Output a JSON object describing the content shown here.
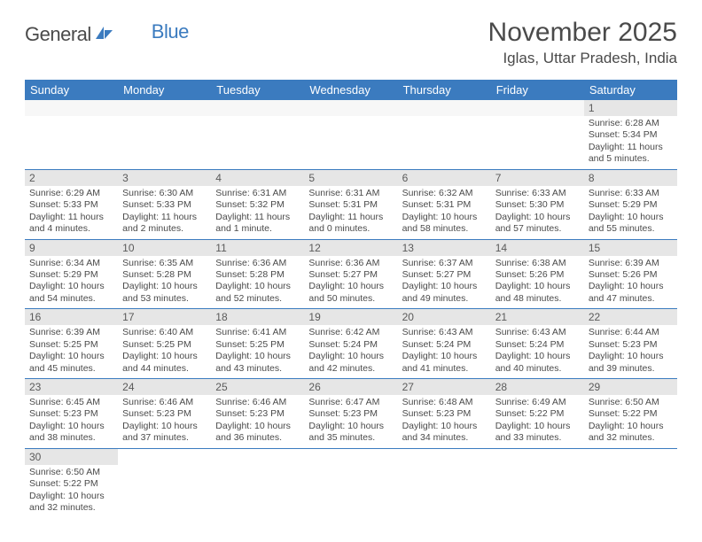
{
  "logo": {
    "part1": "General",
    "part2": "Blue"
  },
  "title": "November 2025",
  "subtitle": "Iglas, Uttar Pradesh, India",
  "colors": {
    "header_bg": "#3b7bbf",
    "header_text": "#ffffff",
    "daynum_bg": "#e6e6e6",
    "text": "#4a4a4a",
    "border": "#3b7bbf",
    "logo_blue": "#3b7bbf"
  },
  "daysOfWeek": [
    "Sunday",
    "Monday",
    "Tuesday",
    "Wednesday",
    "Thursday",
    "Friday",
    "Saturday"
  ],
  "weeks": [
    [
      null,
      null,
      null,
      null,
      null,
      null,
      {
        "n": "1",
        "sr": "Sunrise: 6:28 AM",
        "ss": "Sunset: 5:34 PM",
        "dl": "Daylight: 11 hours and 5 minutes."
      }
    ],
    [
      {
        "n": "2",
        "sr": "Sunrise: 6:29 AM",
        "ss": "Sunset: 5:33 PM",
        "dl": "Daylight: 11 hours and 4 minutes."
      },
      {
        "n": "3",
        "sr": "Sunrise: 6:30 AM",
        "ss": "Sunset: 5:33 PM",
        "dl": "Daylight: 11 hours and 2 minutes."
      },
      {
        "n": "4",
        "sr": "Sunrise: 6:31 AM",
        "ss": "Sunset: 5:32 PM",
        "dl": "Daylight: 11 hours and 1 minute."
      },
      {
        "n": "5",
        "sr": "Sunrise: 6:31 AM",
        "ss": "Sunset: 5:31 PM",
        "dl": "Daylight: 11 hours and 0 minutes."
      },
      {
        "n": "6",
        "sr": "Sunrise: 6:32 AM",
        "ss": "Sunset: 5:31 PM",
        "dl": "Daylight: 10 hours and 58 minutes."
      },
      {
        "n": "7",
        "sr": "Sunrise: 6:33 AM",
        "ss": "Sunset: 5:30 PM",
        "dl": "Daylight: 10 hours and 57 minutes."
      },
      {
        "n": "8",
        "sr": "Sunrise: 6:33 AM",
        "ss": "Sunset: 5:29 PM",
        "dl": "Daylight: 10 hours and 55 minutes."
      }
    ],
    [
      {
        "n": "9",
        "sr": "Sunrise: 6:34 AM",
        "ss": "Sunset: 5:29 PM",
        "dl": "Daylight: 10 hours and 54 minutes."
      },
      {
        "n": "10",
        "sr": "Sunrise: 6:35 AM",
        "ss": "Sunset: 5:28 PM",
        "dl": "Daylight: 10 hours and 53 minutes."
      },
      {
        "n": "11",
        "sr": "Sunrise: 6:36 AM",
        "ss": "Sunset: 5:28 PM",
        "dl": "Daylight: 10 hours and 52 minutes."
      },
      {
        "n": "12",
        "sr": "Sunrise: 6:36 AM",
        "ss": "Sunset: 5:27 PM",
        "dl": "Daylight: 10 hours and 50 minutes."
      },
      {
        "n": "13",
        "sr": "Sunrise: 6:37 AM",
        "ss": "Sunset: 5:27 PM",
        "dl": "Daylight: 10 hours and 49 minutes."
      },
      {
        "n": "14",
        "sr": "Sunrise: 6:38 AM",
        "ss": "Sunset: 5:26 PM",
        "dl": "Daylight: 10 hours and 48 minutes."
      },
      {
        "n": "15",
        "sr": "Sunrise: 6:39 AM",
        "ss": "Sunset: 5:26 PM",
        "dl": "Daylight: 10 hours and 47 minutes."
      }
    ],
    [
      {
        "n": "16",
        "sr": "Sunrise: 6:39 AM",
        "ss": "Sunset: 5:25 PM",
        "dl": "Daylight: 10 hours and 45 minutes."
      },
      {
        "n": "17",
        "sr": "Sunrise: 6:40 AM",
        "ss": "Sunset: 5:25 PM",
        "dl": "Daylight: 10 hours and 44 minutes."
      },
      {
        "n": "18",
        "sr": "Sunrise: 6:41 AM",
        "ss": "Sunset: 5:25 PM",
        "dl": "Daylight: 10 hours and 43 minutes."
      },
      {
        "n": "19",
        "sr": "Sunrise: 6:42 AM",
        "ss": "Sunset: 5:24 PM",
        "dl": "Daylight: 10 hours and 42 minutes."
      },
      {
        "n": "20",
        "sr": "Sunrise: 6:43 AM",
        "ss": "Sunset: 5:24 PM",
        "dl": "Daylight: 10 hours and 41 minutes."
      },
      {
        "n": "21",
        "sr": "Sunrise: 6:43 AM",
        "ss": "Sunset: 5:24 PM",
        "dl": "Daylight: 10 hours and 40 minutes."
      },
      {
        "n": "22",
        "sr": "Sunrise: 6:44 AM",
        "ss": "Sunset: 5:23 PM",
        "dl": "Daylight: 10 hours and 39 minutes."
      }
    ],
    [
      {
        "n": "23",
        "sr": "Sunrise: 6:45 AM",
        "ss": "Sunset: 5:23 PM",
        "dl": "Daylight: 10 hours and 38 minutes."
      },
      {
        "n": "24",
        "sr": "Sunrise: 6:46 AM",
        "ss": "Sunset: 5:23 PM",
        "dl": "Daylight: 10 hours and 37 minutes."
      },
      {
        "n": "25",
        "sr": "Sunrise: 6:46 AM",
        "ss": "Sunset: 5:23 PM",
        "dl": "Daylight: 10 hours and 36 minutes."
      },
      {
        "n": "26",
        "sr": "Sunrise: 6:47 AM",
        "ss": "Sunset: 5:23 PM",
        "dl": "Daylight: 10 hours and 35 minutes."
      },
      {
        "n": "27",
        "sr": "Sunrise: 6:48 AM",
        "ss": "Sunset: 5:23 PM",
        "dl": "Daylight: 10 hours and 34 minutes."
      },
      {
        "n": "28",
        "sr": "Sunrise: 6:49 AM",
        "ss": "Sunset: 5:22 PM",
        "dl": "Daylight: 10 hours and 33 minutes."
      },
      {
        "n": "29",
        "sr": "Sunrise: 6:50 AM",
        "ss": "Sunset: 5:22 PM",
        "dl": "Daylight: 10 hours and 32 minutes."
      }
    ],
    [
      {
        "n": "30",
        "sr": "Sunrise: 6:50 AM",
        "ss": "Sunset: 5:22 PM",
        "dl": "Daylight: 10 hours and 32 minutes."
      },
      null,
      null,
      null,
      null,
      null,
      null
    ]
  ]
}
